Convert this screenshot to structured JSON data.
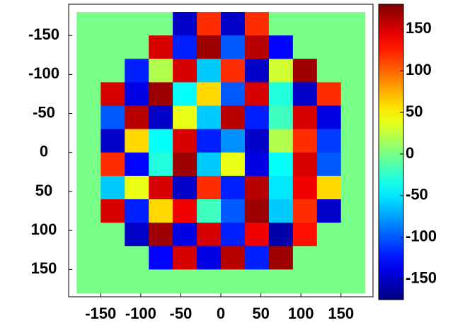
{
  "chart_data": {
    "type": "heatmap",
    "colormap": "jet",
    "x": [
      -165,
      -135,
      -105,
      -75,
      -45,
      -15,
      15,
      45,
      75,
      105,
      135,
      165
    ],
    "y": [
      -165,
      -135,
      -105,
      -75,
      -45,
      -15,
      15,
      45,
      75,
      105,
      135,
      165
    ],
    "z": [
      [
        0,
        0,
        0,
        0,
        -150,
        120,
        -150,
        120,
        0,
        0,
        0,
        0
      ],
      [
        0,
        0,
        0,
        150,
        -120,
        170,
        -100,
        160,
        -130,
        0,
        0,
        0
      ],
      [
        0,
        0,
        -120,
        20,
        150,
        -60,
        120,
        -150,
        30,
        170,
        0,
        0
      ],
      [
        0,
        150,
        -140,
        170,
        -40,
        60,
        -100,
        150,
        -30,
        -150,
        120,
        0
      ],
      [
        0,
        -100,
        160,
        -150,
        40,
        -60,
        160,
        -120,
        -20,
        150,
        -140,
        0
      ],
      [
        0,
        -150,
        60,
        -40,
        150,
        -120,
        -80,
        -150,
        20,
        120,
        -110,
        0
      ],
      [
        0,
        120,
        -130,
        -30,
        170,
        -60,
        40,
        -140,
        -40,
        150,
        -100,
        0
      ],
      [
        0,
        -60,
        40,
        150,
        -150,
        120,
        -120,
        160,
        -50,
        140,
        60,
        0
      ],
      [
        0,
        150,
        -120,
        60,
        140,
        -20,
        -100,
        170,
        -60,
        120,
        -150,
        0
      ],
      [
        0,
        0,
        -150,
        170,
        -140,
        150,
        -120,
        140,
        -160,
        130,
        0,
        0
      ],
      [
        0,
        0,
        0,
        -130,
        150,
        -140,
        160,
        -120,
        170,
        0,
        0,
        0
      ],
      [
        0,
        0,
        0,
        0,
        0,
        0,
        0,
        0,
        0,
        0,
        0,
        0
      ]
    ],
    "cell_size": 30,
    "xlim": [
      -190,
      190
    ],
    "ylim": [
      -190,
      185
    ],
    "xticks": [
      -150,
      -100,
      -50,
      0,
      50,
      100,
      150
    ],
    "yticks": [
      -150,
      -100,
      -50,
      0,
      50,
      100,
      150
    ],
    "clim": [
      -175,
      180
    ],
    "colorbar_ticks": [
      -150,
      -100,
      -50,
      0,
      50,
      100,
      150
    ]
  }
}
